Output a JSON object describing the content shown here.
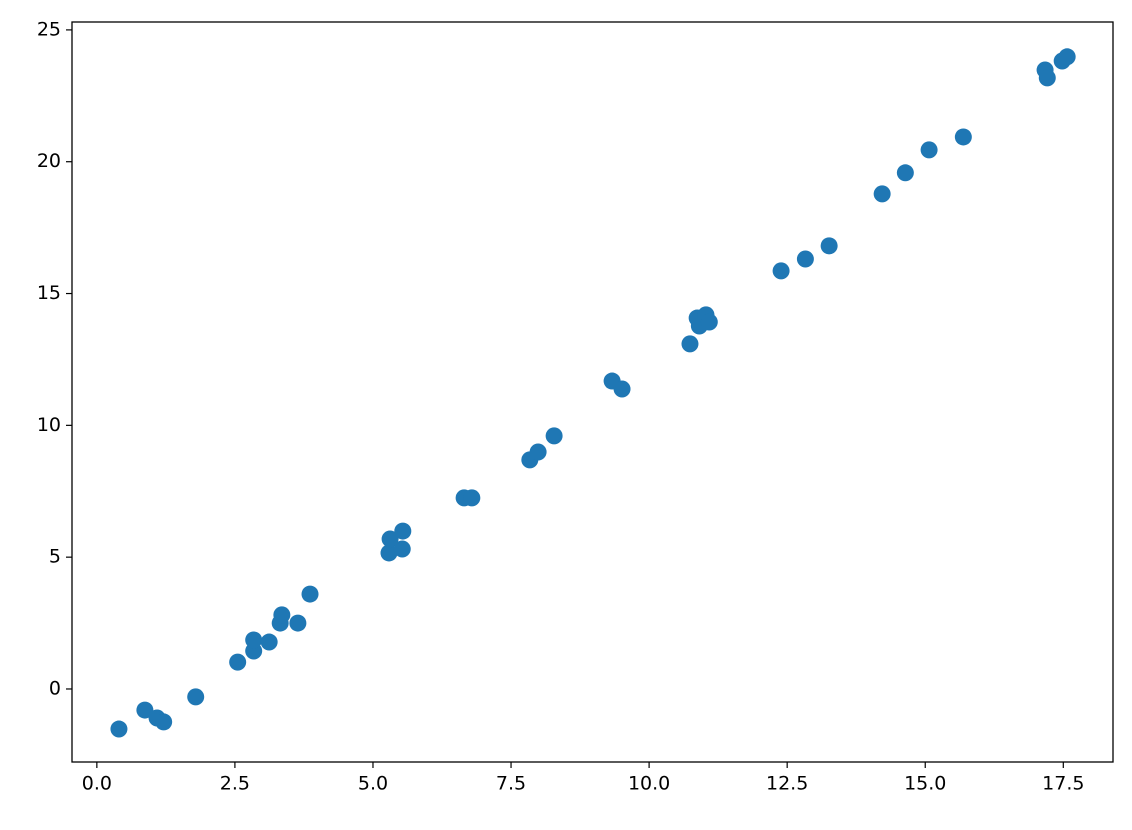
{
  "chart_data": {
    "type": "scatter",
    "x": [
      0.4,
      0.87,
      1.09,
      1.21,
      1.79,
      2.55,
      2.84,
      2.84,
      3.12,
      3.32,
      3.35,
      3.64,
      3.86,
      5.29,
      5.31,
      5.53,
      5.54,
      6.65,
      6.79,
      7.84,
      7.99,
      8.28,
      9.33,
      9.51,
      10.74,
      10.87,
      10.91,
      11.03,
      11.09,
      12.39,
      12.83,
      13.26,
      14.22,
      14.64,
      15.07,
      15.69,
      17.17,
      17.21,
      17.48,
      17.57
    ],
    "values": [
      -1.52,
      -0.8,
      -1.1,
      -1.25,
      -0.3,
      1.02,
      1.44,
      1.86,
      1.78,
      2.5,
      2.81,
      2.5,
      3.6,
      5.16,
      5.69,
      5.31,
      5.99,
      7.25,
      7.25,
      8.69,
      8.99,
      9.6,
      11.68,
      11.38,
      13.09,
      14.07,
      13.77,
      14.19,
      13.92,
      15.86,
      16.31,
      16.81,
      18.78,
      19.58,
      20.45,
      20.94,
      23.48,
      23.18,
      23.82,
      23.98
    ],
    "color": "#1f77b4",
    "xlim": [
      -0.45,
      18.4
    ],
    "ylim": [
      -2.77,
      25.3
    ],
    "xticks": [
      {
        "value": 0,
        "label": "0.0"
      },
      2.5,
      {
        "value": 5,
        "label": "5.0"
      },
      7.5,
      {
        "value": 10,
        "label": "10.0"
      },
      12.5,
      {
        "value": 15,
        "label": "15.0"
      },
      17.5
    ],
    "yticks": [
      0,
      5,
      10,
      15,
      20,
      25
    ],
    "grid": false
  }
}
